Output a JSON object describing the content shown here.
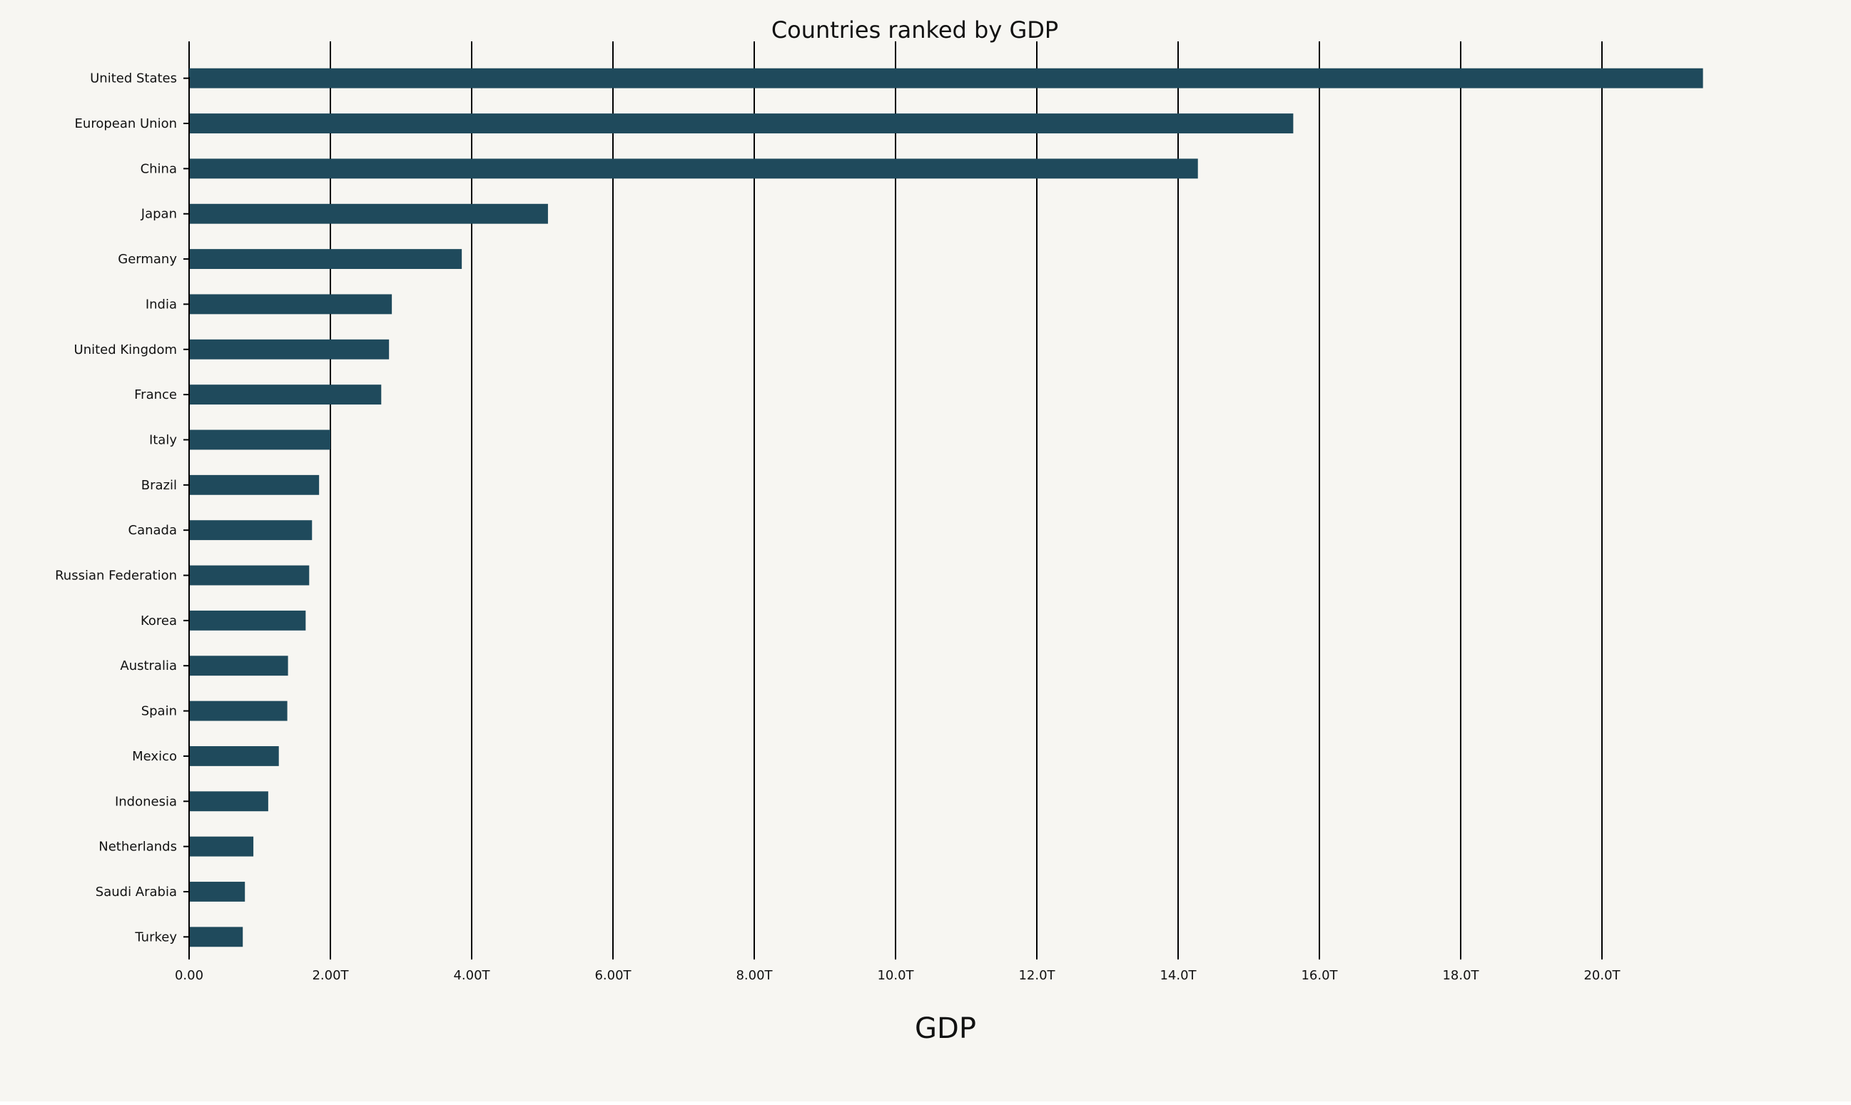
{
  "chart_data": {
    "type": "bar",
    "orientation": "horizontal",
    "title": "Countries ranked by GDP",
    "xlabel": "GDP",
    "ylabel": "",
    "xlim": [
      0,
      22000000000000
    ],
    "x_ticks": [
      0,
      2000000000000,
      4000000000000,
      6000000000000,
      8000000000000,
      10000000000000,
      12000000000000,
      14000000000000,
      16000000000000,
      18000000000000,
      20000000000000
    ],
    "x_tick_labels": [
      "0.00",
      "2.00T",
      "4.00T",
      "6.00T",
      "8.00T",
      "10.0T",
      "12.0T",
      "14.0T",
      "16.0T",
      "18.0T",
      "20.0T"
    ],
    "grid": "vertical",
    "legend": "none",
    "colors": {
      "bar": "#1f4a5c",
      "background": "#f7f6f2",
      "gridline": "#000000"
    },
    "categories": [
      "United States",
      "European Union",
      "China",
      "Japan",
      "Germany",
      "India",
      "United Kingdom",
      "France",
      "Italy",
      "Brazil",
      "Canada",
      "Russian Federation",
      "Korea",
      "Australia",
      "Spain",
      "Mexico",
      "Indonesia",
      "Netherlands",
      "Saudi Arabia",
      "Turkey"
    ],
    "values": [
      21430000000000,
      15630000000000,
      14280000000000,
      5080000000000,
      3860000000000,
      2870000000000,
      2830000000000,
      2720000000000,
      2000000000000,
      1840000000000,
      1740000000000,
      1700000000000,
      1650000000000,
      1400000000000,
      1390000000000,
      1270000000000,
      1120000000000,
      910000000000,
      790000000000,
      760000000000
    ]
  }
}
